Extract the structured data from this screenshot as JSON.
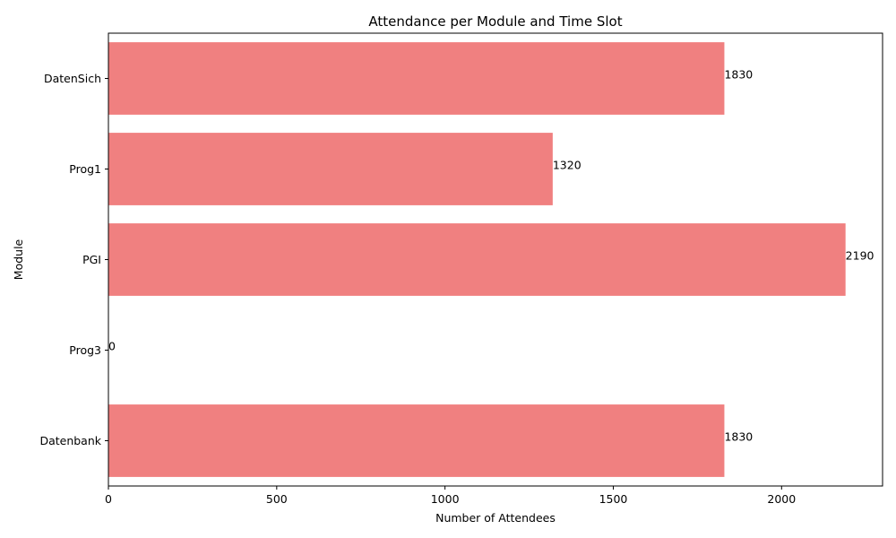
{
  "chart_data": {
    "type": "bar",
    "orientation": "horizontal",
    "title": "Attendance per Module and Time Slot",
    "xlabel": "Number of Attendees",
    "ylabel": "Module",
    "categories": [
      "Datenbank",
      "Prog3",
      "PGI",
      "Prog1",
      "DatenSich"
    ],
    "values": [
      1830,
      0,
      2190,
      1320,
      1830
    ],
    "xlim": [
      0,
      2300
    ],
    "xticks": [
      0,
      500,
      1000,
      1500,
      2000
    ],
    "bar_color": "#f08080",
    "grid": false,
    "legend": "none"
  }
}
